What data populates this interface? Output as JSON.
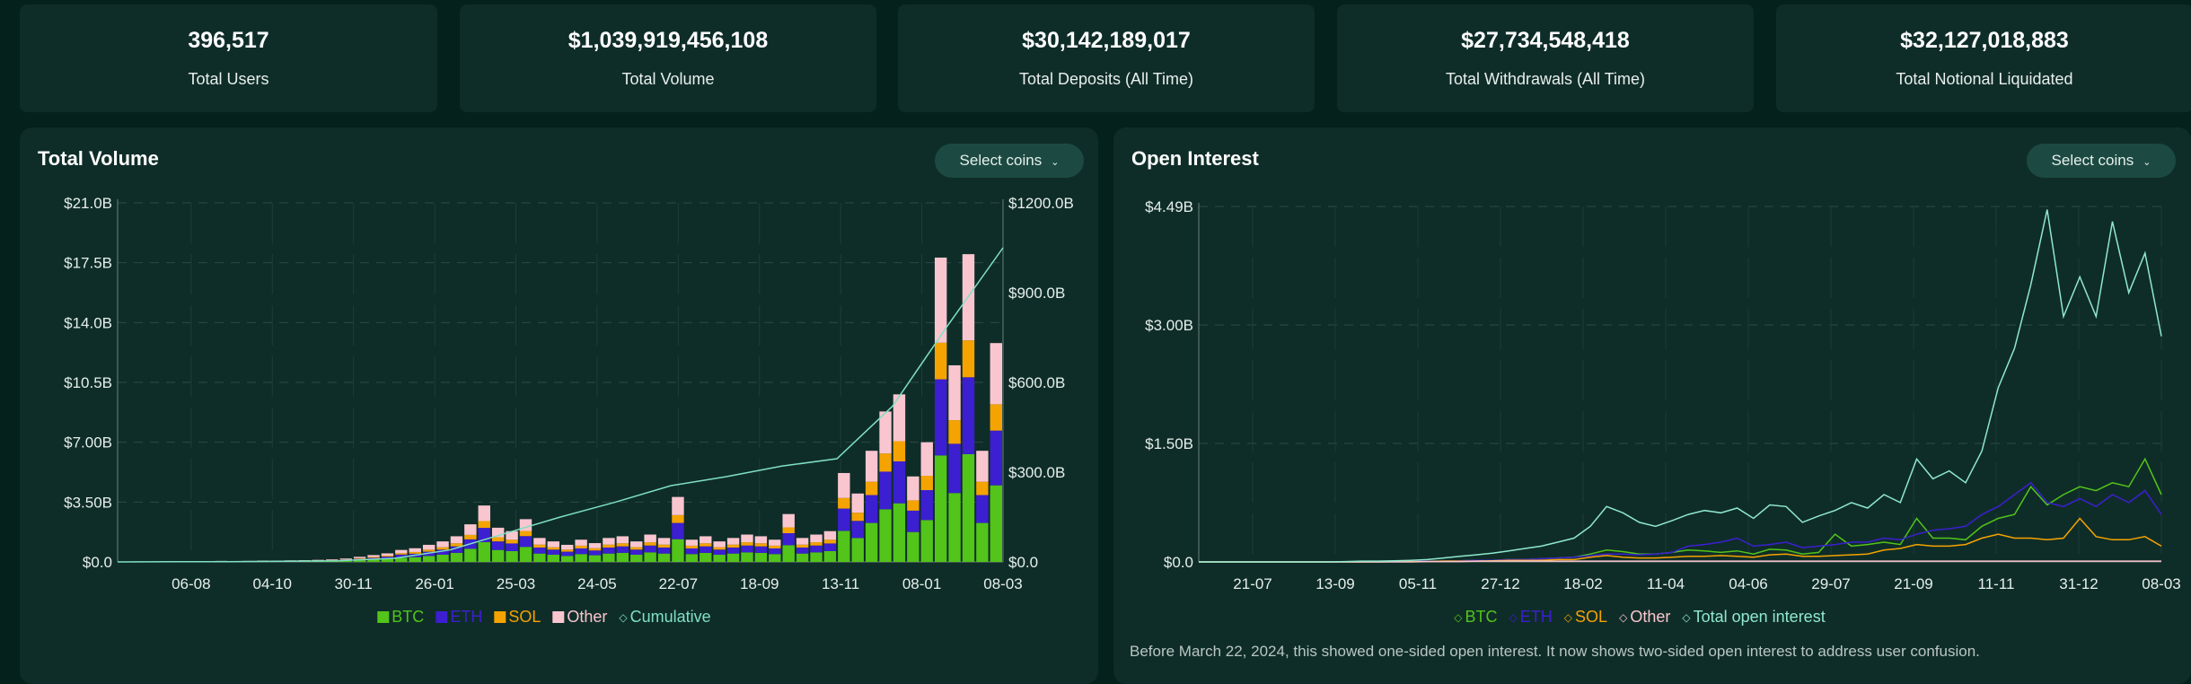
{
  "stats": [
    {
      "value": "396,517",
      "label": "Total Users"
    },
    {
      "value": "$1,039,919,456,108",
      "label": "Total Volume"
    },
    {
      "value": "$30,142,189,017",
      "label": "Total Deposits (All Time)"
    },
    {
      "value": "$27,734,548,418",
      "label": "Total Withdrawals (All Time)"
    },
    {
      "value": "$32,127,018,883",
      "label": "Total Notional Liquidated"
    }
  ],
  "volume_panel": {
    "title": "Total Volume",
    "select_label": "Select coins",
    "chevron": "chevron-down-icon"
  },
  "oi_panel": {
    "title": "Open Interest",
    "select_label": "Select coins",
    "chevron": "chevron-down-icon",
    "note": "Before March 22, 2024, this showed one-sided open interest. It now shows two-sided open interest to address user confusion."
  },
  "colors": {
    "BTC": "#52c41a",
    "ETH": "#3b1fd1",
    "SOL": "#f5a300",
    "Other": "#f9c6cf",
    "Cumulative": "#7fe0c5",
    "Total": "#8fe8cf"
  },
  "chart_data": [
    {
      "type": "bar",
      "stacked": true,
      "title": "Total Volume",
      "x_tick_labels": [
        "06-08",
        "04-10",
        "30-11",
        "26-01",
        "25-03",
        "24-05",
        "22-07",
        "18-09",
        "13-11",
        "08-01",
        "08-03"
      ],
      "y_tick_labels": [
        "$0.0",
        "$3.50B",
        "$7.00B",
        "$10.5B",
        "$14.0B",
        "$17.5B",
        "$21.0B"
      ],
      "ylim": [
        0,
        21
      ],
      "y2_tick_labels": [
        "$0.0",
        "$300.0B",
        "$600.0B",
        "$900.0B",
        "$1200.0B"
      ],
      "y2lim": [
        0,
        1200
      ],
      "grid": true,
      "legend": "bottom",
      "series": [
        {
          "name": "BTC",
          "values": [
            0.01,
            0.01,
            0.01,
            0.01,
            0.01,
            0.02,
            0.01,
            0.02,
            0.02,
            0.02,
            0.03,
            0.02,
            0.03,
            0.04,
            0.04,
            0.05,
            0.07,
            0.1,
            0.14,
            0.18,
            0.25,
            0.28,
            0.35,
            0.42,
            0.53,
            0.77,
            1.16,
            0.7,
            0.63,
            0.88,
            0.49,
            0.42,
            0.35,
            0.46,
            0.39,
            0.49,
            0.53,
            0.42,
            0.56,
            0.49,
            1.33,
            0.46,
            0.53,
            0.42,
            0.49,
            0.56,
            0.53,
            0.46,
            0.98,
            0.49,
            0.56,
            0.63,
            1.82,
            1.4,
            2.28,
            3.08,
            3.43,
            1.75,
            2.45,
            6.23,
            4.03,
            6.3,
            2.28,
            4.48
          ]
        },
        {
          "name": "ETH",
          "values": [
            0.005,
            0.01,
            0.005,
            0.01,
            0.01,
            0.01,
            0.01,
            0.02,
            0.01,
            0.02,
            0.02,
            0.02,
            0.02,
            0.03,
            0.03,
            0.04,
            0.05,
            0.08,
            0.1,
            0.13,
            0.18,
            0.2,
            0.25,
            0.3,
            0.38,
            0.55,
            0.83,
            0.5,
            0.45,
            0.63,
            0.35,
            0.3,
            0.25,
            0.33,
            0.28,
            0.35,
            0.38,
            0.3,
            0.4,
            0.35,
            0.95,
            0.33,
            0.38,
            0.3,
            0.35,
            0.4,
            0.38,
            0.33,
            0.7,
            0.35,
            0.4,
            0.45,
            1.3,
            1.0,
            1.63,
            2.2,
            2.45,
            1.25,
            1.75,
            4.45,
            2.88,
            4.5,
            1.63,
            3.2
          ]
        },
        {
          "name": "SOL",
          "values": [
            0,
            0,
            0,
            0,
            0,
            0.01,
            0,
            0.01,
            0,
            0.01,
            0.01,
            0.01,
            0.01,
            0.01,
            0.01,
            0.02,
            0.02,
            0.04,
            0.05,
            0.06,
            0.08,
            0.1,
            0.12,
            0.14,
            0.18,
            0.26,
            0.4,
            0.24,
            0.22,
            0.3,
            0.17,
            0.14,
            0.12,
            0.16,
            0.13,
            0.17,
            0.18,
            0.14,
            0.19,
            0.17,
            0.46,
            0.16,
            0.18,
            0.14,
            0.17,
            0.19,
            0.18,
            0.16,
            0.34,
            0.17,
            0.19,
            0.22,
            0.62,
            0.48,
            0.78,
            1.06,
            1.18,
            0.6,
            0.84,
            2.14,
            1.38,
            2.16,
            0.78,
            1.54
          ]
        },
        {
          "name": "Other",
          "values": [
            0.005,
            0.01,
            0.005,
            0.02,
            0.01,
            0.01,
            0.02,
            0.01,
            0.02,
            0.01,
            0.02,
            0.02,
            0.03,
            0.02,
            0.04,
            0.04,
            0.06,
            0.08,
            0.11,
            0.13,
            0.19,
            0.22,
            0.28,
            0.34,
            0.41,
            0.62,
            0.91,
            0.56,
            0.5,
            0.69,
            0.39,
            0.34,
            0.28,
            0.35,
            0.3,
            0.39,
            0.41,
            0.34,
            0.45,
            0.39,
            1.06,
            0.35,
            0.41,
            0.34,
            0.39,
            0.45,
            0.41,
            0.35,
            0.78,
            0.39,
            0.45,
            0.5,
            1.46,
            1.12,
            1.81,
            2.46,
            2.74,
            1.4,
            1.96,
            4.98,
            3.21,
            5.04,
            1.81,
            3.58
          ]
        }
      ],
      "line_series": {
        "name": "Cumulative",
        "axis": "right",
        "values": [
          0,
          0.5,
          1,
          2,
          4,
          12,
          40,
          95,
          150,
          200,
          255,
          285,
          320,
          345,
          520,
          790,
          1050
        ]
      }
    },
    {
      "type": "line",
      "title": "Open Interest",
      "x_tick_labels": [
        "21-07",
        "13-09",
        "05-11",
        "27-12",
        "18-02",
        "11-04",
        "04-06",
        "29-07",
        "21-09",
        "11-11",
        "31-12",
        "08-03"
      ],
      "y_tick_labels": [
        "$0.0",
        "$1.50B",
        "$3.00B",
        "$4.49B"
      ],
      "ylim": [
        0,
        4.49
      ],
      "grid": true,
      "legend": "bottom",
      "series": [
        {
          "name": "BTC",
          "values": [
            0,
            0,
            0,
            0,
            0,
            0,
            0,
            0,
            0,
            0,
            0,
            0,
            0.005,
            0.005,
            0.01,
            0.01,
            0.015,
            0.02,
            0.02,
            0.03,
            0.03,
            0.04,
            0.05,
            0.06,
            0.1,
            0.15,
            0.13,
            0.1,
            0.1,
            0.12,
            0.15,
            0.14,
            0.12,
            0.14,
            0.1,
            0.16,
            0.15,
            0.1,
            0.12,
            0.35,
            0.2,
            0.22,
            0.25,
            0.22,
            0.55,
            0.3,
            0.3,
            0.28,
            0.45,
            0.55,
            0.6,
            0.95,
            0.72,
            0.85,
            0.95,
            0.9,
            1.0,
            0.95,
            1.3,
            0.85
          ]
        },
        {
          "name": "ETH",
          "values": [
            0,
            0,
            0,
            0,
            0,
            0,
            0,
            0,
            0,
            0,
            0,
            0,
            0.005,
            0.005,
            0.01,
            0.01,
            0.015,
            0.02,
            0.02,
            0.03,
            0.03,
            0.04,
            0.05,
            0.06,
            0.08,
            0.1,
            0.1,
            0.09,
            0.1,
            0.12,
            0.2,
            0.22,
            0.25,
            0.3,
            0.2,
            0.22,
            0.25,
            0.18,
            0.2,
            0.22,
            0.25,
            0.25,
            0.3,
            0.28,
            0.35,
            0.4,
            0.42,
            0.45,
            0.6,
            0.7,
            0.85,
            1.0,
            0.75,
            0.7,
            0.8,
            0.7,
            0.85,
            0.75,
            0.9,
            0.6
          ]
        },
        {
          "name": "SOL",
          "values": [
            0,
            0,
            0,
            0,
            0,
            0,
            0,
            0,
            0,
            0,
            0,
            0,
            0.005,
            0.005,
            0.005,
            0.01,
            0.01,
            0.01,
            0.015,
            0.02,
            0.02,
            0.02,
            0.03,
            0.03,
            0.06,
            0.08,
            0.06,
            0.05,
            0.05,
            0.06,
            0.07,
            0.07,
            0.08,
            0.07,
            0.06,
            0.09,
            0.1,
            0.07,
            0.07,
            0.08,
            0.09,
            0.1,
            0.15,
            0.17,
            0.22,
            0.2,
            0.2,
            0.22,
            0.3,
            0.35,
            0.3,
            0.3,
            0.28,
            0.3,
            0.55,
            0.32,
            0.28,
            0.28,
            0.32,
            0.2
          ]
        },
        {
          "name": "Other",
          "values": [
            0,
            0,
            0,
            0,
            0,
            0,
            0,
            0,
            0,
            0,
            0,
            0,
            0,
            0,
            0.005,
            0.005,
            0.005,
            0.01,
            0.01,
            0.01,
            0.01,
            0.01,
            0.01,
            0.01,
            0.01,
            0.01,
            0.01,
            0.01,
            0.01,
            0.01,
            0.01,
            0.01,
            0.01,
            0.01,
            0.01,
            0.01,
            0.01,
            0.01,
            0.01,
            0.01,
            0.01,
            0.01,
            0.01,
            0.01,
            0.01,
            0.01,
            0.01,
            0.01,
            0.01,
            0.01,
            0.01,
            0.01,
            0.01,
            0.01,
            0.01,
            0.01,
            0.01,
            0.01,
            0.01,
            0.01
          ]
        },
        {
          "name": "Total open interest",
          "values": [
            0,
            0,
            0,
            0,
            0,
            0,
            0,
            0,
            0,
            0.005,
            0.01,
            0.01,
            0.015,
            0.02,
            0.03,
            0.05,
            0.07,
            0.09,
            0.11,
            0.14,
            0.17,
            0.2,
            0.25,
            0.3,
            0.45,
            0.7,
            0.62,
            0.5,
            0.45,
            0.52,
            0.6,
            0.65,
            0.62,
            0.68,
            0.55,
            0.72,
            0.7,
            0.5,
            0.58,
            0.65,
            0.75,
            0.68,
            0.85,
            0.75,
            1.3,
            1.05,
            1.15,
            1.0,
            1.4,
            2.2,
            2.7,
            3.5,
            4.45,
            3.1,
            3.6,
            3.1,
            4.3,
            3.4,
            3.9,
            2.85
          ]
        }
      ]
    }
  ]
}
